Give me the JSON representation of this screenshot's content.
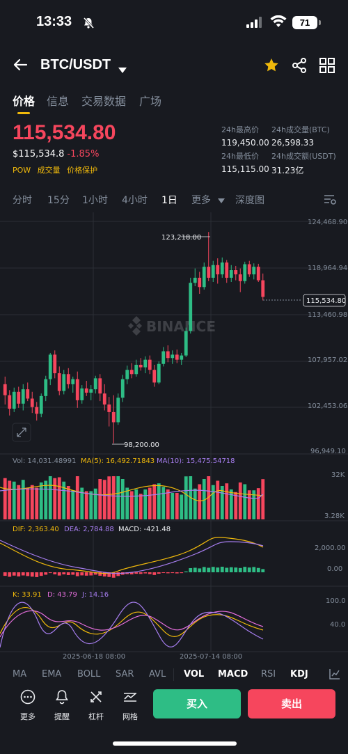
{
  "status_bar": {
    "time": "13:33",
    "battery": "71"
  },
  "header": {
    "pair": "BTC/USDT"
  },
  "tabs": [
    "价格",
    "信息",
    "交易数据",
    "广场"
  ],
  "ticker": {
    "last_price": "115,534.80",
    "usd_value": "$115,534.8",
    "change": "-1.85%",
    "tags": [
      "POW",
      "成交量",
      "价格保护"
    ],
    "high_label": "24h最高价",
    "high": "119,450.00",
    "low_label": "24h最低价",
    "low": "115,115.00",
    "vol_btc_label": "24h成交量(BTC)",
    "vol_btc": "26,598.33",
    "vol_usdt_label": "24h成交额(USDT)",
    "vol_usdt": "31.23亿"
  },
  "intervals": [
    "分时",
    "15分",
    "1小时",
    "4小时",
    "1日",
    "更多",
    "深度图"
  ],
  "selected_interval": "1日",
  "chart": {
    "watermark": "BINANCE",
    "price_axis": [
      "124,468.90",
      "118,964.94",
      "113,460.98",
      "107,957.02",
      "102,453.06",
      "96,949.10"
    ],
    "current_price_tag": "115,534.80",
    "high_annotation": "123,218.00",
    "low_annotation": "98,200.00",
    "vol_legend": {
      "vol": "Vol: 14,031.48991",
      "ma5": "MA(5): 16,492.71843",
      "ma10": "MA(10): 15,475.54718"
    },
    "vol_axis": [
      "32K",
      "3.28K"
    ],
    "macd_legend": {
      "dif": "DIF: 2,363.40",
      "dea": "DEA: 2,784.88",
      "macd": "MACD: -421.48"
    },
    "macd_axis": [
      "2,000.00",
      "0.00"
    ],
    "kdj_legend": {
      "k": "K: 33.91",
      "d": "D: 43.79",
      "j": "J: 14.16"
    },
    "kdj_axis": [
      "100.0",
      "40.0"
    ],
    "date_labels": [
      "2025-06-18 08:00",
      "2025-07-14 08:00"
    ],
    "colors": {
      "up": "#2ebd85",
      "down": "#f6465d",
      "ma5": "#f0b90b",
      "ma10": "#a77ef0",
      "bg": "#181a20"
    }
  },
  "indicators": [
    "MA",
    "EMA",
    "BOLL",
    "SAR",
    "AVL",
    "VOL",
    "MACD",
    "RSI",
    "KDJ"
  ],
  "active_indicators": [
    "VOL",
    "MACD",
    "KDJ"
  ],
  "bottom_bar": {
    "more": "更多",
    "alert": "提醒",
    "leverage": "杠杆",
    "grid": "网格",
    "buy": "买入",
    "sell": "卖出"
  },
  "candles": [
    [
      105200,
      106100,
      102800,
      103900
    ],
    [
      103900,
      104500,
      101500,
      102300
    ],
    [
      102300,
      104800,
      101900,
      104300
    ],
    [
      104300,
      104900,
      102400,
      102900
    ],
    [
      102900,
      105200,
      102100,
      104600
    ],
    [
      104600,
      105400,
      103200,
      103500
    ],
    [
      103500,
      104300,
      101800,
      102500
    ],
    [
      102500,
      103100,
      100900,
      101700
    ],
    [
      101700,
      104100,
      101300,
      103800
    ],
    [
      103800,
      106200,
      103200,
      105800
    ],
    [
      105800,
      108900,
      105100,
      108700
    ],
    [
      108700,
      109200,
      105900,
      106500
    ],
    [
      106500,
      107300,
      103900,
      104400
    ],
    [
      104400,
      106900,
      104000,
      106400
    ],
    [
      106400,
      107100,
      104700,
      105200
    ],
    [
      105200,
      106100,
      104200,
      105800
    ],
    [
      105800,
      106700,
      102400,
      103300
    ],
    [
      103300,
      105100,
      102900,
      104700
    ],
    [
      104700,
      105600,
      103800,
      104200
    ],
    [
      104200,
      105100,
      103300,
      104600
    ],
    [
      104600,
      106200,
      104100,
      105900
    ],
    [
      105900,
      106400,
      103200,
      104100
    ],
    [
      104100,
      105200,
      102100,
      102800
    ],
    [
      102800,
      103700,
      100200,
      101900
    ],
    [
      101900,
      103900,
      98200,
      100700
    ],
    [
      100700,
      104100,
      100400,
      103600
    ],
    [
      103600,
      106300,
      103100,
      105800
    ],
    [
      105800,
      107400,
      105200,
      106900
    ],
    [
      106900,
      107700,
      105900,
      106400
    ],
    [
      106400,
      108100,
      106100,
      107500
    ],
    [
      107500,
      108300,
      106800,
      107200
    ],
    [
      107200,
      108500,
      106500,
      108100
    ],
    [
      108100,
      108600,
      106400,
      106900
    ],
    [
      106900,
      107500,
      104900,
      105400
    ],
    [
      105400,
      107900,
      105200,
      107600
    ],
    [
      107600,
      109600,
      107300,
      109100
    ],
    [
      109100,
      109800,
      107800,
      108300
    ],
    [
      108300,
      109200,
      107600,
      108700
    ],
    [
      108700,
      109300,
      107700,
      108100
    ],
    [
      108100,
      108900,
      107500,
      108600
    ],
    [
      108600,
      111900,
      108400,
      111500
    ],
    [
      111500,
      117800,
      111200,
      117200
    ],
    [
      117200,
      118900,
      116800,
      117800
    ],
    [
      117800,
      118500,
      115900,
      116700
    ],
    [
      116700,
      119600,
      116400,
      119100
    ],
    [
      119100,
      123218,
      117400,
      117800
    ],
    [
      117800,
      119800,
      117300,
      119300
    ],
    [
      119300,
      120100,
      117100,
      118200
    ],
    [
      118200,
      120200,
      117800,
      119600
    ],
    [
      119600,
      119900,
      117200,
      117800
    ],
    [
      117800,
      119300,
      117300,
      118700
    ],
    [
      118700,
      119200,
      117500,
      118200
    ],
    [
      118200,
      118900,
      116100,
      117400
    ],
    [
      117400,
      119700,
      117100,
      119400
    ],
    [
      119400,
      119800,
      117900,
      118200
    ],
    [
      118200,
      119500,
      117600,
      119100
    ],
    [
      119100,
      119450,
      117300,
      117500
    ],
    [
      117500,
      118300,
      115115,
      115534.8
    ]
  ]
}
